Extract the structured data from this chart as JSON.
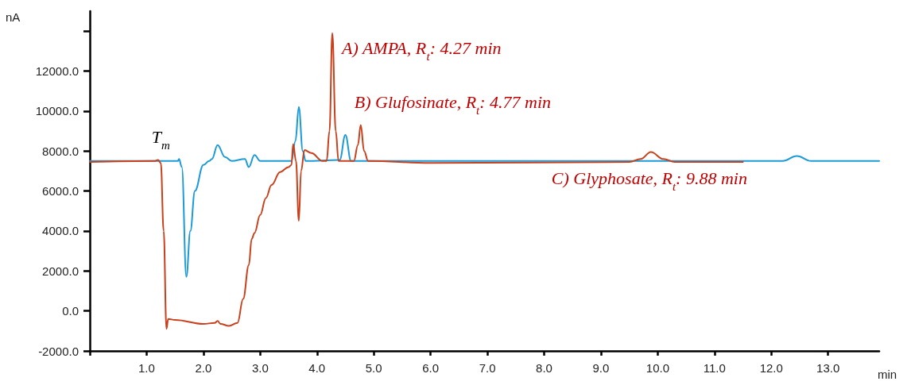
{
  "chart_data": {
    "type": "line",
    "xlabel": "min",
    "ylabel": "nA",
    "xlim": [
      0,
      13.9
    ],
    "ylim": [
      -2000,
      15000
    ],
    "xticks": [
      {
        "value": 0,
        "label": null
      },
      {
        "value": 1,
        "label": "1.0"
      },
      {
        "value": 2,
        "label": "2.0"
      },
      {
        "value": 3,
        "label": "3.0"
      },
      {
        "value": 4,
        "label": "4.0"
      },
      {
        "value": 5,
        "label": "5.0"
      },
      {
        "value": 6,
        "label": "6.0"
      },
      {
        "value": 7,
        "label": "7.0"
      },
      {
        "value": 8,
        "label": "8.0"
      },
      {
        "value": 9,
        "label": "9.0"
      },
      {
        "value": 10,
        "label": "10.0"
      },
      {
        "value": 11,
        "label": "11.0"
      },
      {
        "value": 12,
        "label": "12.0"
      },
      {
        "value": 13,
        "label": "13.0"
      }
    ],
    "yticks": [
      {
        "value": -2000,
        "label": "-2000.0"
      },
      {
        "value": 0,
        "label": "0.0"
      },
      {
        "value": 2000,
        "label": "2000.0"
      },
      {
        "value": 4000,
        "label": "4000.0"
      },
      {
        "value": 6000,
        "label": "6000.0"
      },
      {
        "value": 8000,
        "label": "8000.0"
      },
      {
        "value": 10000,
        "label": "10000.0"
      },
      {
        "value": 12000,
        "label": "12000.0"
      },
      {
        "value": 14000,
        "label": null
      }
    ],
    "grid": false,
    "marker": "none",
    "line_style": "solid",
    "series": [
      {
        "color": "#1a9ad6",
        "x": [
          0,
          1.55,
          1.57,
          1.62,
          1.7,
          1.77,
          1.85,
          2.0,
          2.1,
          2.15,
          2.25,
          2.38,
          2.5,
          2.73,
          2.8,
          2.9,
          3.0,
          3.55,
          3.62,
          3.68,
          3.75,
          3.8,
          4.4,
          4.5,
          4.6,
          12.2,
          12.45,
          12.7,
          13.9
        ],
        "values": [
          7500,
          7500,
          7600,
          7200,
          1700,
          4000,
          6000,
          7300,
          7500,
          7600,
          8300,
          7700,
          7500,
          7600,
          7200,
          7800,
          7500,
          7500,
          8500,
          10200,
          8000,
          7500,
          7550,
          8800,
          7500,
          7500,
          7750,
          7500,
          7500
        ]
      },
      {
        "color": "#c8401c",
        "x": [
          0,
          1.15,
          1.2,
          1.25,
          1.3,
          1.35,
          1.38,
          1.5,
          2.0,
          2.2,
          2.25,
          2.3,
          2.45,
          2.6,
          2.7,
          2.8,
          2.85,
          2.9,
          3.0,
          3.1,
          3.2,
          3.35,
          3.5,
          3.55,
          3.58,
          3.63,
          3.68,
          3.72,
          3.78,
          3.9,
          4.1,
          4.17,
          4.22,
          4.27,
          4.33,
          4.38,
          4.65,
          4.72,
          4.77,
          4.83,
          4.9,
          6.0,
          9.5,
          9.7,
          9.88,
          10.1,
          10.3,
          11.5
        ],
        "values": [
          7450,
          7500,
          7550,
          7400,
          4000,
          -900,
          -400,
          -450,
          -650,
          -600,
          -500,
          -650,
          -750,
          -600,
          600,
          2300,
          3600,
          3900,
          4800,
          5650,
          6300,
          6950,
          7200,
          7300,
          8350,
          7500,
          4500,
          7000,
          8050,
          7900,
          7500,
          7500,
          9000,
          13900,
          9000,
          7500,
          7500,
          8300,
          9300,
          8000,
          7500,
          7400,
          7450,
          7600,
          7950,
          7600,
          7450,
          7450
        ]
      }
    ],
    "annotations": [
      {
        "text": "T$_{m}$",
        "x": 1.2,
        "y": 7550
      },
      {
        "text": "A) AMPA, R$_{t}$: 4.27 min",
        "x": 4.27,
        "y": 13900
      },
      {
        "text": "B) Glufosinate, R$_{t}$: 4.77 min",
        "x": 4.77,
        "y": 9300
      },
      {
        "text": "C) Glyphosate, R$_{t}$: 9.88 min",
        "x": 9.88,
        "y": 7950
      }
    ]
  }
}
